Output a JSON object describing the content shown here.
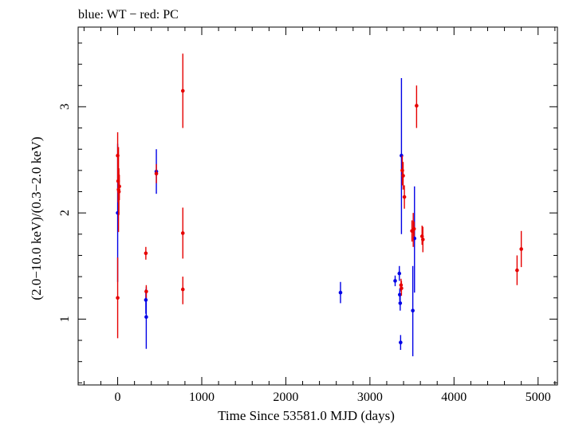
{
  "chart_data": {
    "type": "scatter",
    "title": "blue: WT − red: PC",
    "xlabel": "Time Since 53581.0 MJD (days)",
    "ylabel": "(2.0−10.0 keV)/(0.3−2.0 keV)",
    "xlim": [
      -470,
      5230
    ],
    "ylim": [
      0.38,
      3.75
    ],
    "xticks": [
      0,
      1000,
      2000,
      3000,
      4000,
      5000
    ],
    "xtick_labels": [
      "0",
      "1000",
      "2000",
      "3000",
      "4000",
      "5000"
    ],
    "yticks": [
      1,
      2,
      3
    ],
    "ytick_labels": [
      "1",
      "2",
      "3"
    ],
    "grid": false,
    "series": [
      {
        "color": "#0000e6",
        "points": [
          {
            "x": 0,
            "y": 2.0,
            "ylo": 1.35,
            "yhi": 2.65
          },
          {
            "x": 335,
            "y": 1.18,
            "ylo": 1.05,
            "yhi": 1.28
          },
          {
            "x": 340,
            "y": 1.02,
            "ylo": 0.72,
            "yhi": 1.3
          },
          {
            "x": 460,
            "y": 2.39,
            "ylo": 2.18,
            "yhi": 2.6
          },
          {
            "x": 2650,
            "y": 1.25,
            "ylo": 1.15,
            "yhi": 1.35
          },
          {
            "x": 3300,
            "y": 1.36,
            "ylo": 1.31,
            "yhi": 1.41
          },
          {
            "x": 3350,
            "y": 1.43,
            "ylo": 1.36,
            "yhi": 1.5
          },
          {
            "x": 3355,
            "y": 1.23,
            "ylo": 1.17,
            "yhi": 1.29
          },
          {
            "x": 3360,
            "y": 1.15,
            "ylo": 1.08,
            "yhi": 1.22
          },
          {
            "x": 3365,
            "y": 0.78,
            "ylo": 0.71,
            "yhi": 0.85
          },
          {
            "x": 3375,
            "y": 2.54,
            "ylo": 1.8,
            "yhi": 3.27
          },
          {
            "x": 3510,
            "y": 1.08,
            "ylo": 0.65,
            "yhi": 1.5
          },
          {
            "x": 3530,
            "y": 1.76,
            "ylo": 1.25,
            "yhi": 2.25
          }
        ]
      },
      {
        "color": "#e60000",
        "points": [
          {
            "x": 0,
            "y": 2.54,
            "ylo": 2.3,
            "yhi": 2.76
          },
          {
            "x": 5,
            "y": 2.3,
            "ylo": 2.1,
            "yhi": 2.5
          },
          {
            "x": 10,
            "y": 2.22,
            "ylo": 1.82,
            "yhi": 2.62
          },
          {
            "x": 15,
            "y": 2.2,
            "ylo": 1.98,
            "yhi": 2.42
          },
          {
            "x": 20,
            "y": 2.25,
            "ylo": 2.12,
            "yhi": 2.36
          },
          {
            "x": 0,
            "y": 1.2,
            "ylo": 0.82,
            "yhi": 1.58
          },
          {
            "x": 335,
            "y": 1.62,
            "ylo": 1.56,
            "yhi": 1.68
          },
          {
            "x": 340,
            "y": 1.26,
            "ylo": 1.2,
            "yhi": 1.32
          },
          {
            "x": 460,
            "y": 2.37,
            "ylo": 2.28,
            "yhi": 2.46
          },
          {
            "x": 775,
            "y": 3.15,
            "ylo": 2.8,
            "yhi": 3.5
          },
          {
            "x": 775,
            "y": 1.81,
            "ylo": 1.57,
            "yhi": 2.05
          },
          {
            "x": 775,
            "y": 1.28,
            "ylo": 1.14,
            "yhi": 1.4
          },
          {
            "x": 3370,
            "y": 1.32,
            "ylo": 1.26,
            "yhi": 1.38
          },
          {
            "x": 3375,
            "y": 1.29,
            "ylo": 1.22,
            "yhi": 1.36
          },
          {
            "x": 3385,
            "y": 2.4,
            "ylo": 2.26,
            "yhi": 2.54
          },
          {
            "x": 3395,
            "y": 2.35,
            "ylo": 2.22,
            "yhi": 2.48
          },
          {
            "x": 3410,
            "y": 2.15,
            "ylo": 2.04,
            "yhi": 2.26
          },
          {
            "x": 3500,
            "y": 1.83,
            "ylo": 1.73,
            "yhi": 1.93
          },
          {
            "x": 3515,
            "y": 1.84,
            "ylo": 1.68,
            "yhi": 2.0
          },
          {
            "x": 3525,
            "y": 1.85,
            "ylo": 1.78,
            "yhi": 1.92
          },
          {
            "x": 3555,
            "y": 3.01,
            "ylo": 2.8,
            "yhi": 3.2
          },
          {
            "x": 3620,
            "y": 1.78,
            "ylo": 1.7,
            "yhi": 1.88
          },
          {
            "x": 3630,
            "y": 1.75,
            "ylo": 1.63,
            "yhi": 1.87
          },
          {
            "x": 4750,
            "y": 1.46,
            "ylo": 1.32,
            "yhi": 1.6
          },
          {
            "x": 4800,
            "y": 1.66,
            "ylo": 1.49,
            "yhi": 1.83
          }
        ]
      }
    ]
  }
}
